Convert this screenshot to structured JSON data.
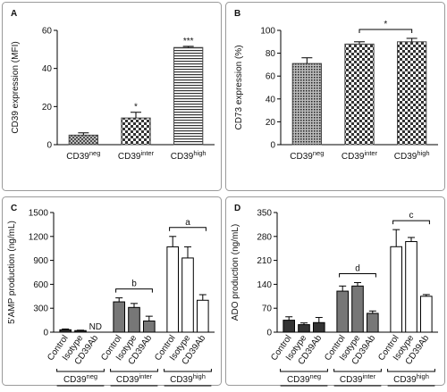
{
  "chart_data": [
    {
      "type": "bar",
      "panel_label": "A",
      "y_label": "CD39 expression (MFI)",
      "categories": [
        "CD39neg",
        "CD39inter",
        "CD39high"
      ],
      "values": [
        5,
        14,
        51
      ],
      "errors": [
        1.2,
        3,
        0.6
      ],
      "value_annotations": [
        null,
        "*",
        "***"
      ],
      "patterns": [
        "cross",
        "checker",
        "hlines"
      ],
      "color": "#444444",
      "ylim": [
        0,
        60
      ],
      "yticks": [
        0,
        20,
        40,
        60
      ]
    },
    {
      "type": "bar",
      "panel_label": "B",
      "y_label": "CD73 expression (%)",
      "categories": [
        "CD39neg",
        "CD39inter",
        "CD39high"
      ],
      "values": [
        71,
        88,
        90
      ],
      "errors": [
        5,
        2,
        3
      ],
      "brackets": [
        {
          "label": "*",
          "span": [
            1,
            2
          ]
        }
      ],
      "patterns": [
        "dots",
        "checker",
        "checker"
      ],
      "color": "#444444",
      "ylim": [
        0,
        100
      ],
      "yticks": [
        0,
        20,
        40,
        60,
        80,
        100
      ]
    },
    {
      "type": "grouped_bar",
      "panel_label": "C",
      "y_label": "5'AMP production (ng/mL)",
      "categories": [
        "Control",
        "Isotype",
        "CD39Ab"
      ],
      "series": [
        {
          "name": "CD39neg",
          "color": "#333333",
          "values": [
            30,
            20,
            null
          ],
          "errors": [
            10,
            5,
            null
          ],
          "value_labels": [
            null,
            null,
            "ND"
          ]
        },
        {
          "name": "CD39inter",
          "color": "#777777",
          "values": [
            380,
            310,
            140
          ],
          "errors": [
            50,
            50,
            60
          ],
          "bracket": "b"
        },
        {
          "name": "CD39high",
          "color": "#ffffff",
          "values": [
            1070,
            930,
            400
          ],
          "errors": [
            130,
            140,
            70
          ],
          "bracket": "a"
        }
      ],
      "ylim": [
        0,
        1500
      ],
      "yticks": [
        0,
        300,
        600,
        900,
        1200,
        1500
      ]
    },
    {
      "type": "grouped_bar",
      "panel_label": "D",
      "y_label": "ADO production (ng/mL)",
      "categories": [
        "Control",
        "Isotype",
        "CD39Ab"
      ],
      "series": [
        {
          "name": "CD39neg",
          "color": "#333333",
          "values": [
            35,
            22,
            28
          ],
          "errors": [
            10,
            5,
            15
          ]
        },
        {
          "name": "CD39inter",
          "color": "#777777",
          "values": [
            120,
            135,
            55
          ],
          "errors": [
            15,
            10,
            7
          ],
          "bracket": "d"
        },
        {
          "name": "CD39high",
          "color": "#ffffff",
          "values": [
            250,
            265,
            105
          ],
          "errors": [
            50,
            12,
            5
          ],
          "bracket": "c"
        }
      ],
      "ylim": [
        0,
        350
      ],
      "yticks": [
        0,
        70,
        140,
        210,
        280,
        350
      ]
    }
  ]
}
